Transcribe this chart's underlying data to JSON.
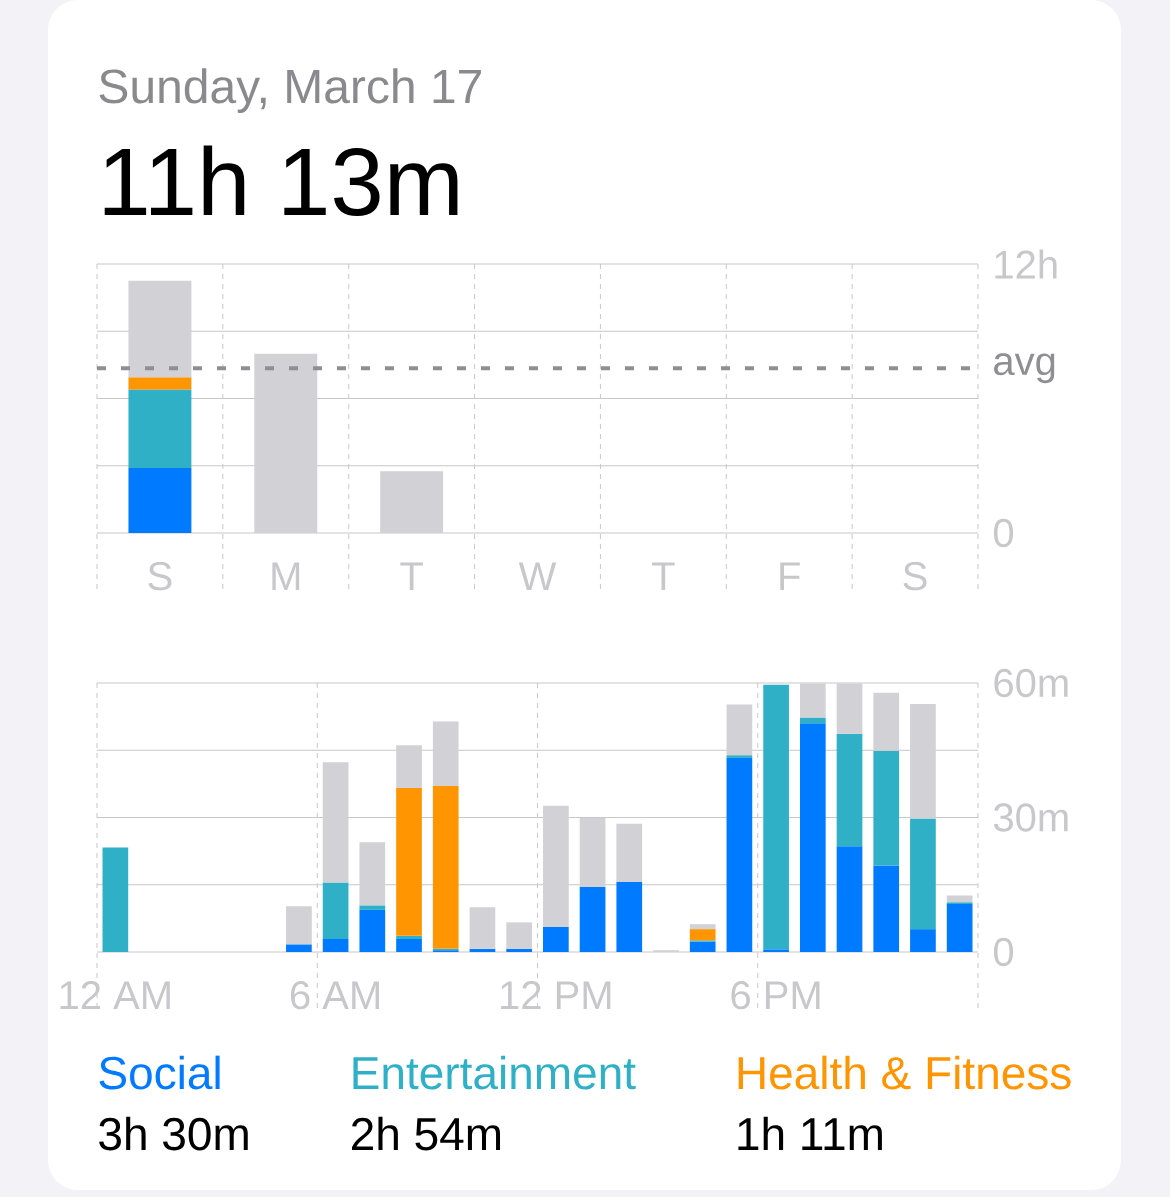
{
  "chart_data": [
    {
      "type": "bar",
      "title": "11h 13m",
      "subtitle": "Sunday, March 17",
      "categories": [
        "S",
        "M",
        "T",
        "W",
        "T",
        "F",
        "S"
      ],
      "stacked": true,
      "series": [
        {
          "color": "#007aff",
          "values": [
            2.9,
            null,
            null,
            null,
            null,
            null,
            null
          ]
        },
        {
          "color": "#30b0c7",
          "values": [
            3.5,
            null,
            null,
            null,
            null,
            null,
            null
          ]
        },
        {
          "color": "#ff9500",
          "values": [
            0.55,
            null,
            null,
            null,
            null,
            null,
            null
          ]
        },
        {
          "color": "#d1d1d6",
          "values": [
            4.3,
            8.0,
            2.75,
            null,
            null,
            null,
            null
          ]
        }
      ],
      "ylim": [
        0,
        12
      ],
      "yticks": [
        0,
        {
          "value": 3,
          "label": null
        },
        {
          "value": 6,
          "label": null
        },
        {
          "value": 9,
          "label": null
        },
        {
          "value": 12,
          "label": "12h"
        }
      ],
      "grid": true,
      "ref_lines": [
        {
          "axis": "y",
          "value": 7.35,
          "label": "avg",
          "color": "#8e8e93",
          "line_style": "dashed"
        }
      ]
    },
    {
      "type": "bar",
      "categories": [
        "12 AM",
        null,
        null,
        null,
        null,
        null,
        "6 AM",
        null,
        null,
        null,
        null,
        null,
        "12 PM",
        null,
        null,
        null,
        null,
        null,
        "6 PM",
        null,
        null,
        null,
        null,
        null
      ],
      "stacked": true,
      "series": [
        {
          "name": "Social",
          "color": "#007aff",
          "values": [
            null,
            null,
            null,
            null,
            null,
            1.7,
            2.9,
            9.4,
            2.9,
            0.4,
            0.7,
            0.7,
            5.6,
            14.5,
            15.6,
            null,
            2.3,
            43.3,
            0.6,
            51.0,
            23.6,
            19.3,
            5.1,
            10.7
          ]
        },
        {
          "name": "Entertainment",
          "color": "#30b0c7",
          "values": [
            23.3,
            null,
            null,
            null,
            null,
            null,
            12.6,
            1.0,
            0.7,
            0.3,
            null,
            null,
            null,
            null,
            null,
            null,
            0.3,
            0.6,
            59.0,
            1.3,
            25.1,
            25.6,
            24.7,
            0.4
          ]
        },
        {
          "name": "Health & Fitness",
          "color": "#ff9500",
          "values": [
            null,
            null,
            null,
            null,
            null,
            null,
            null,
            null,
            33.0,
            36.3,
            null,
            null,
            null,
            null,
            null,
            null,
            2.5,
            null,
            null,
            null,
            null,
            null,
            null,
            null
          ]
        },
        {
          "color": "#d1d1d6",
          "values": [
            null,
            null,
            null,
            null,
            null,
            8.5,
            26.8,
            14.1,
            9.5,
            14.4,
            9.3,
            5.9,
            27.0,
            15.4,
            13.0,
            0.4,
            1.1,
            11.3,
            null,
            7.6,
            11.2,
            12.9,
            25.5,
            1.5
          ]
        }
      ],
      "ylim": [
        0,
        60
      ],
      "yticks": [
        0,
        {
          "value": 15,
          "label": null
        },
        {
          "value": 30,
          "label": "30m"
        },
        {
          "value": 45,
          "label": null
        },
        {
          "value": 60,
          "label": "60m"
        }
      ],
      "grid": true,
      "legend": "bottom",
      "annotations": [
        "3h 30m",
        "2h 54m",
        "1h 11m"
      ]
    }
  ]
}
